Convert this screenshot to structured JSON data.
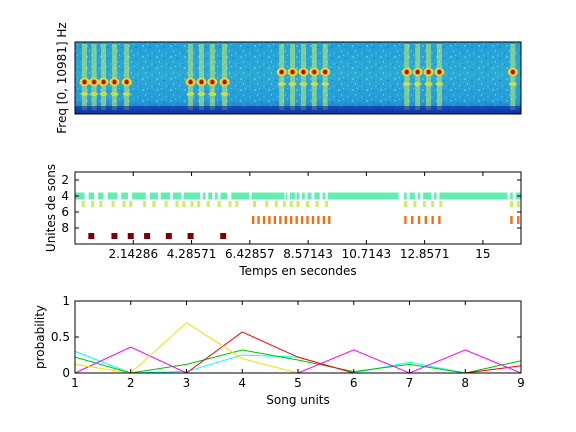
{
  "chart_data": [
    {
      "type": "heatmap",
      "panel": "spectrogram",
      "ylabel": "Freq [0, 10981] Hz",
      "xlim": [
        0,
        16.4
      ],
      "frequency_range_hz": [
        0,
        10981
      ],
      "colors": {
        "background": "#1a8fcf",
        "high": "#a01010",
        "mid": "#f0e030",
        "low": "#0a20a0"
      },
      "call_times_s": [
        0.35,
        0.7,
        1.05,
        1.45,
        1.9,
        4.25,
        4.65,
        5.05,
        5.5,
        7.6,
        8.0,
        8.4,
        8.8,
        9.2,
        12.2,
        12.6,
        13.0,
        13.4,
        16.1
      ],
      "call_rows": [
        "lower",
        "lower",
        "lower",
        "lower",
        "lower",
        "lower",
        "lower",
        "lower",
        "lower",
        "upper",
        "upper",
        "upper",
        "upper",
        "upper",
        "upper",
        "upper",
        "upper",
        "upper",
        "upper"
      ]
    },
    {
      "type": "scatter",
      "panel": "unit-raster",
      "xlabel": "Temps en secondes",
      "ylabel": "Unites de sons",
      "xticks": [
        "2.14286",
        "4.28571",
        "6.42857",
        "8.57143",
        "10.7143",
        "12.8571",
        "15"
      ],
      "xtick_values": [
        2.14286,
        4.28571,
        6.42857,
        8.57143,
        10.7143,
        12.8571,
        15
      ],
      "yticks": [
        "2",
        "4",
        "6",
        "8"
      ],
      "ytick_values": [
        2,
        4,
        6,
        8
      ],
      "ylim": [
        1,
        10
      ],
      "xlim": [
        0,
        16.4
      ],
      "unit_colors": {
        "4": "#5ff0b0",
        "5": "#c8f060",
        "7": "#f07018",
        "9": "#800000"
      },
      "unit4_segments": [
        [
          0,
          0.35
        ],
        [
          0.5,
          0.7
        ],
        [
          0.85,
          1.05
        ],
        [
          1.2,
          1.55
        ],
        [
          1.7,
          1.95
        ],
        [
          2.1,
          2.6
        ],
        [
          2.75,
          3.05
        ],
        [
          3.15,
          3.5
        ],
        [
          3.6,
          3.9
        ],
        [
          4.0,
          4.6
        ],
        [
          4.7,
          4.8
        ],
        [
          4.9,
          5.05
        ],
        [
          5.15,
          5.25
        ],
        [
          5.35,
          5.6
        ],
        [
          5.75,
          6.4
        ],
        [
          6.5,
          7.7
        ],
        [
          7.75,
          7.8
        ],
        [
          7.9,
          8.1
        ],
        [
          8.15,
          8.25
        ],
        [
          8.35,
          8.45
        ],
        [
          8.55,
          8.7
        ],
        [
          8.8,
          9.0
        ],
        [
          9.1,
          9.2
        ],
        [
          9.3,
          11.9
        ],
        [
          12.1,
          12.2
        ],
        [
          12.3,
          12.5
        ],
        [
          12.6,
          12.7
        ],
        [
          12.8,
          13.1
        ],
        [
          13.2,
          13.3
        ],
        [
          13.4,
          15.9
        ],
        [
          16.0,
          16.1
        ],
        [
          16.2,
          16.4
        ]
      ],
      "unit5_times": [
        0.3,
        0.65,
        0.95,
        1.4,
        1.8,
        2.05,
        2.55,
        2.9,
        3.35,
        3.75,
        4.0,
        4.3,
        4.55,
        4.9,
        5.3,
        5.7,
        5.95,
        6.6,
        7.05,
        7.4,
        7.7,
        7.95,
        8.2,
        8.55,
        8.9,
        9.25,
        12.15,
        12.5,
        12.85,
        13.15,
        13.45,
        16.05,
        16.3
      ],
      "unit7_times": [
        6.55,
        6.75,
        6.95,
        7.15,
        7.35,
        7.55,
        7.75,
        7.95,
        8.15,
        8.35,
        8.55,
        8.75,
        8.95,
        9.15,
        9.35,
        12.15,
        12.4,
        12.65,
        12.9,
        13.15,
        13.4,
        16.05,
        16.3
      ],
      "unit9_times": [
        0.6,
        1.45,
        2.05,
        2.65,
        3.45,
        4.25,
        5.45
      ]
    },
    {
      "type": "line",
      "panel": "probability",
      "xlabel": "Song units",
      "ylabel": "probability",
      "x": [
        1,
        2,
        3,
        4,
        5,
        6,
        7,
        8,
        9
      ],
      "xlim": [
        1,
        9
      ],
      "ylim": [
        0,
        1
      ],
      "xticks": [
        "1",
        "2",
        "3",
        "4",
        "5",
        "6",
        "7",
        "8",
        "9"
      ],
      "yticks": [
        "0",
        "0.5",
        "1"
      ],
      "ytick_values": [
        0,
        0.5,
        1
      ],
      "series": [
        {
          "color": "#0000ff",
          "values": [
            0.0,
            0.0,
            0.0,
            0.0,
            0.0,
            0.0,
            0.0,
            0.0,
            0.0
          ]
        },
        {
          "color": "#00ffff",
          "values": [
            0.3,
            0.0,
            0.02,
            0.25,
            0.22,
            0.0,
            0.15,
            0.0,
            0.1
          ]
        },
        {
          "color": "#00c000",
          "values": [
            0.22,
            0.0,
            0.12,
            0.32,
            0.18,
            0.02,
            0.12,
            0.0,
            0.17
          ]
        },
        {
          "color": "#ff0000",
          "values": [
            0.0,
            0.0,
            0.0,
            0.57,
            0.22,
            0.0,
            0.0,
            0.0,
            0.1
          ]
        },
        {
          "color": "#ff00ff",
          "values": [
            0.0,
            0.36,
            0.0,
            0.0,
            0.0,
            0.32,
            0.0,
            0.32,
            0.0
          ]
        },
        {
          "color": "#f0e000",
          "values": [
            0.12,
            0.0,
            0.7,
            0.2,
            0.0,
            0.0,
            0.0,
            0.0,
            0.0
          ]
        }
      ]
    }
  ]
}
